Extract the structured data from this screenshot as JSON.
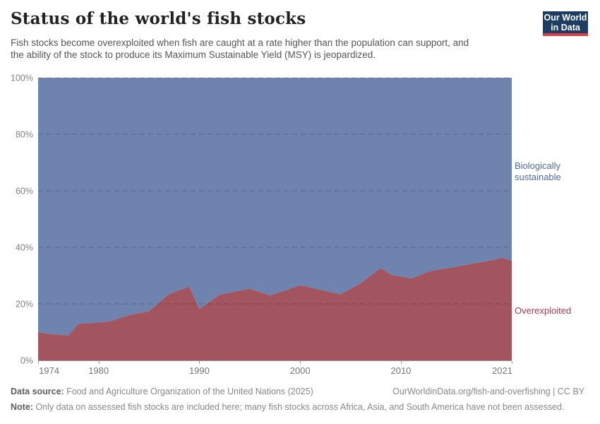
{
  "header": {
    "title": "Status of the world's fish stocks",
    "subtitle_lines": [
      "Fish stocks become overexploited when fish are caught at a rate higher than the population can support, and",
      "the ability of the stock to produce its Maximum Sustainable Yield (MSY) is jeopardized."
    ],
    "logo": {
      "line1": "Our World",
      "line2": "in Data",
      "bg_color": "#1d3d63",
      "bar_color": "#dc3e45"
    }
  },
  "chart_data": {
    "type": "area",
    "stacked": true,
    "unit": "%",
    "title": "Status of the world's fish stocks",
    "grid": "dashed",
    "legend_position": "right-inline",
    "xlim": [
      1974,
      2021
    ],
    "ylim": [
      0,
      100
    ],
    "x": [
      1974,
      1975,
      1977,
      1978,
      1981,
      1983,
      1985,
      1987,
      1989,
      1990,
      1992,
      1995,
      1997,
      2000,
      2004,
      2006,
      2008,
      2009,
      2011,
      2013,
      2015,
      2017,
      2019,
      2020,
      2021
    ],
    "series": [
      {
        "name": "Biologically sustainable",
        "color": "#6e84af",
        "label_color": "#50699e",
        "values": [
          90.0,
          90.6,
          91.2,
          87.1,
          86.3,
          84.0,
          82.6,
          76.5,
          73.9,
          81.8,
          76.8,
          74.6,
          77.0,
          73.4,
          76.6,
          72.7,
          67.3,
          69.7,
          71.0,
          68.3,
          67.2,
          65.8,
          64.6,
          63.7,
          64.7
        ]
      },
      {
        "name": "Overexploited",
        "color": "#a2555f",
        "label_color": "#9e3e4d",
        "values": [
          10.0,
          9.4,
          8.8,
          12.9,
          13.7,
          16.0,
          17.4,
          23.5,
          26.1,
          18.2,
          23.2,
          25.4,
          23.0,
          26.6,
          23.4,
          27.3,
          32.7,
          30.3,
          29.0,
          31.7,
          32.8,
          34.2,
          35.4,
          36.3,
          35.3
        ]
      }
    ],
    "yticks": [
      {
        "value": 0,
        "label": "0%"
      },
      {
        "value": 20,
        "label": "20%"
      },
      {
        "value": 40,
        "label": "40%"
      },
      {
        "value": 60,
        "label": "60%"
      },
      {
        "value": 80,
        "label": "80%"
      },
      {
        "value": 100,
        "label": "100%"
      }
    ],
    "xticks": [
      {
        "value": 1974,
        "label": "1974"
      },
      {
        "value": 1980,
        "label": "1980"
      },
      {
        "value": 1990,
        "label": "1990"
      },
      {
        "value": 2000,
        "label": "2000"
      },
      {
        "value": 2010,
        "label": "2010"
      },
      {
        "value": 2021,
        "label": "2021"
      }
    ]
  },
  "footer": {
    "source_label": "Data source:",
    "source_text": "Food and Agriculture Organization of the United Nations (2025)",
    "credit": "OurWorldinData.org/fish-and-overfishing | CC BY",
    "note_label": "Note:",
    "note_text": "Only data on assessed fish stocks are included here; many fish stocks across Africa, Asia, and South America have not been assessed."
  }
}
